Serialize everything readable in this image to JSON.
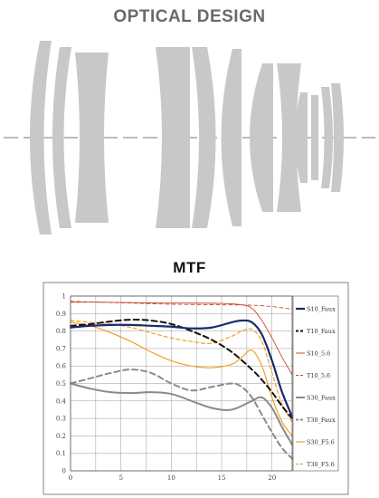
{
  "headings": {
    "optical": "OPTICAL DESIGN",
    "mtf": "MTF"
  },
  "colors": {
    "lens": "#c8c8c8",
    "axis": "#7a7a7a",
    "title": "#6a6a6a"
  },
  "chart_data": {
    "type": "line",
    "title": "MTF",
    "xlabel": "",
    "ylabel": "",
    "xlim": [
      0,
      22
    ],
    "ylim": [
      0,
      1
    ],
    "x_ticks": [
      0,
      5,
      10,
      15,
      20
    ],
    "y_ticks": [
      0,
      0.1,
      0.2,
      0.3,
      0.4,
      0.5,
      0.6,
      0.7,
      0.8,
      0.9,
      1
    ],
    "grid": true,
    "legend_position": "right",
    "series": [
      {
        "name": "S10_Faux",
        "color": "#1a2a6e",
        "dash": "solid",
        "width": 2.2,
        "x": [
          0,
          2,
          4,
          6,
          8,
          10,
          12,
          14,
          16,
          17,
          18,
          19,
          20,
          21,
          22
        ],
        "y": [
          0.82,
          0.83,
          0.835,
          0.835,
          0.83,
          0.825,
          0.815,
          0.82,
          0.85,
          0.86,
          0.85,
          0.78,
          0.63,
          0.45,
          0.31
        ]
      },
      {
        "name": "T10_Faux",
        "color": "#111111",
        "dash": "6,4",
        "width": 2.0,
        "x": [
          0,
          2,
          4,
          6,
          8,
          10,
          12,
          14,
          16,
          18,
          19,
          20,
          21,
          22
        ],
        "y": [
          0.83,
          0.84,
          0.855,
          0.865,
          0.86,
          0.84,
          0.8,
          0.75,
          0.68,
          0.58,
          0.52,
          0.45,
          0.37,
          0.3
        ]
      },
      {
        "name": "S10_5.6",
        "color": "#c84a2a",
        "dash": "solid",
        "width": 0.9,
        "x": [
          0,
          3,
          6,
          9,
          12,
          15,
          17,
          18,
          19,
          20,
          21,
          22
        ],
        "y": [
          0.965,
          0.965,
          0.963,
          0.96,
          0.96,
          0.958,
          0.95,
          0.93,
          0.86,
          0.76,
          0.65,
          0.55
        ]
      },
      {
        "name": "T10_5.6",
        "color": "#c84a2a",
        "dash": "4,3",
        "width": 0.9,
        "x": [
          0,
          3,
          6,
          9,
          12,
          15,
          18,
          20,
          22
        ],
        "y": [
          0.97,
          0.965,
          0.96,
          0.955,
          0.952,
          0.95,
          0.948,
          0.94,
          0.925
        ]
      },
      {
        "name": "S30_Faux",
        "color": "#8a8a8a",
        "dash": "solid",
        "width": 2.0,
        "x": [
          0,
          2,
          4,
          6,
          8,
          10,
          12,
          14,
          16,
          18,
          19,
          20,
          21,
          22
        ],
        "y": [
          0.5,
          0.47,
          0.45,
          0.445,
          0.45,
          0.44,
          0.4,
          0.36,
          0.35,
          0.4,
          0.42,
          0.36,
          0.25,
          0.15
        ]
      },
      {
        "name": "T30_Faux",
        "color": "#8a8a8a",
        "dash": "6,4",
        "width": 2.0,
        "x": [
          0,
          2,
          4,
          6,
          8,
          10,
          12,
          14,
          16,
          17,
          18,
          19,
          20,
          21,
          22
        ],
        "y": [
          0.5,
          0.53,
          0.56,
          0.58,
          0.56,
          0.5,
          0.46,
          0.48,
          0.5,
          0.48,
          0.42,
          0.32,
          0.22,
          0.13,
          0.07
        ]
      },
      {
        "name": "S30_F5.6",
        "color": "#f2a024",
        "dash": "solid",
        "width": 1.2,
        "x": [
          0,
          2,
          4,
          6,
          8,
          10,
          12,
          14,
          16,
          17,
          18,
          19,
          20,
          21,
          22
        ],
        "y": [
          0.85,
          0.83,
          0.79,
          0.74,
          0.68,
          0.63,
          0.6,
          0.59,
          0.61,
          0.65,
          0.69,
          0.6,
          0.42,
          0.28,
          0.2
        ]
      },
      {
        "name": "T30_F5.6",
        "color": "#f2a024",
        "dash": "4,3",
        "width": 1.2,
        "x": [
          0,
          2,
          4,
          6,
          8,
          10,
          12,
          14,
          16,
          17,
          18,
          19,
          20,
          21,
          22
        ],
        "y": [
          0.86,
          0.85,
          0.84,
          0.82,
          0.79,
          0.76,
          0.74,
          0.73,
          0.77,
          0.8,
          0.81,
          0.74,
          0.56,
          0.38,
          0.28
        ]
      }
    ]
  }
}
